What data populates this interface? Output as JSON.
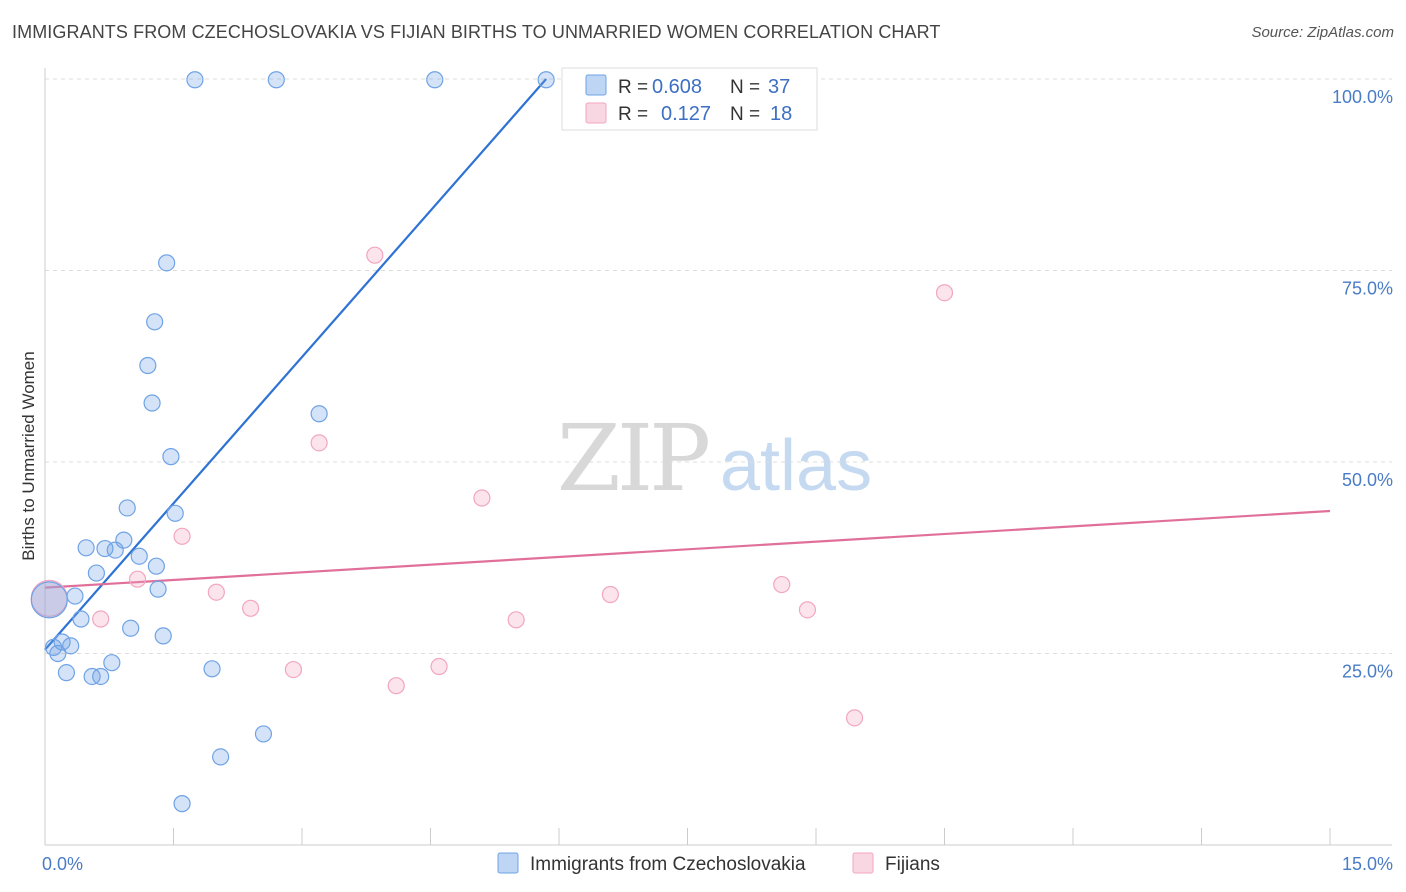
{
  "title": "IMMIGRANTS FROM CZECHOSLOVAKIA VS FIJIAN BIRTHS TO UNMARRIED WOMEN CORRELATION CHART",
  "source": "Source: ZipAtlas.com",
  "watermark": {
    "zip": "ZIP",
    "atlas": "atlas"
  },
  "chart_data": {
    "type": "scatter",
    "title": "IMMIGRANTS FROM CZECHOSLOVAKIA VS FIJIAN BIRTHS TO UNMARRIED WOMEN CORRELATION CHART",
    "xlabel": "",
    "ylabel": "Births to Unmarried Women",
    "xlim": [
      0,
      15
    ],
    "ylim": [
      0,
      100
    ],
    "x_tick_labels": [
      {
        "value": 0,
        "label": "0.0%"
      },
      {
        "value": 15,
        "label": "15.0%"
      }
    ],
    "y_tick_labels": [
      {
        "value": 100,
        "label": "100.0%"
      },
      {
        "value": 75,
        "label": "75.0%"
      },
      {
        "value": 50,
        "label": "50.0%"
      },
      {
        "value": 25,
        "label": "25.0%"
      }
    ],
    "legend_placement": "top-center",
    "series": [
      {
        "name": "Immigrants from Czechoslovakia",
        "color": "#6fa3e6",
        "line_color": "#2e73d4",
        "R": "0.608",
        "N": "37",
        "trend": {
          "x": [
            0.0,
            5.85
          ],
          "y": [
            25.5,
            100.0
          ]
        },
        "points": [
          {
            "x": 0.05,
            "y": 32,
            "big": true
          },
          {
            "x": 0.1,
            "y": 25.8
          },
          {
            "x": 0.15,
            "y": 25.0
          },
          {
            "x": 0.2,
            "y": 26.5
          },
          {
            "x": 0.25,
            "y": 22.5
          },
          {
            "x": 0.3,
            "y": 26.0
          },
          {
            "x": 0.35,
            "y": 32.5
          },
          {
            "x": 0.42,
            "y": 29.5
          },
          {
            "x": 0.48,
            "y": 38.8
          },
          {
            "x": 0.55,
            "y": 22.0
          },
          {
            "x": 0.6,
            "y": 35.5
          },
          {
            "x": 0.65,
            "y": 22.0
          },
          {
            "x": 0.7,
            "y": 38.7
          },
          {
            "x": 0.78,
            "y": 23.8
          },
          {
            "x": 0.82,
            "y": 38.5
          },
          {
            "x": 0.92,
            "y": 39.8
          },
          {
            "x": 0.96,
            "y": 44.0
          },
          {
            "x": 1.0,
            "y": 28.3
          },
          {
            "x": 1.1,
            "y": 37.7
          },
          {
            "x": 1.2,
            "y": 62.6
          },
          {
            "x": 1.25,
            "y": 57.7
          },
          {
            "x": 1.28,
            "y": 68.3
          },
          {
            "x": 1.3,
            "y": 36.4
          },
          {
            "x": 1.32,
            "y": 33.4
          },
          {
            "x": 1.38,
            "y": 27.3
          },
          {
            "x": 1.42,
            "y": 76.0
          },
          {
            "x": 1.47,
            "y": 50.7
          },
          {
            "x": 1.52,
            "y": 43.3
          },
          {
            "x": 1.6,
            "y": 5.4
          },
          {
            "x": 1.75,
            "y": 99.9
          },
          {
            "x": 1.95,
            "y": 23.0
          },
          {
            "x": 2.05,
            "y": 11.5
          },
          {
            "x": 2.55,
            "y": 14.5
          },
          {
            "x": 2.7,
            "y": 99.9
          },
          {
            "x": 3.2,
            "y": 56.3
          },
          {
            "x": 4.55,
            "y": 99.9
          },
          {
            "x": 5.85,
            "y": 99.9
          }
        ]
      },
      {
        "name": "Fijians",
        "color": "#f2a6bf",
        "line_color": "#e0709a",
        "R": "0.127",
        "N": "18",
        "trend": {
          "x": [
            0.0,
            15.0
          ],
          "y": [
            33.6,
            43.6
          ]
        },
        "points": [
          {
            "x": 0.05,
            "y": 32.2,
            "big": true
          },
          {
            "x": 0.65,
            "y": 29.5
          },
          {
            "x": 1.08,
            "y": 34.7
          },
          {
            "x": 1.6,
            "y": 40.3
          },
          {
            "x": 2.0,
            "y": 33.0
          },
          {
            "x": 2.4,
            "y": 30.9
          },
          {
            "x": 2.9,
            "y": 22.9
          },
          {
            "x": 3.2,
            "y": 52.5
          },
          {
            "x": 3.85,
            "y": 77.0
          },
          {
            "x": 4.1,
            "y": 20.8
          },
          {
            "x": 4.6,
            "y": 23.3
          },
          {
            "x": 5.1,
            "y": 45.3
          },
          {
            "x": 5.5,
            "y": 29.4
          },
          {
            "x": 6.6,
            "y": 32.7
          },
          {
            "x": 8.6,
            "y": 34.0
          },
          {
            "x": 8.9,
            "y": 30.7
          },
          {
            "x": 9.45,
            "y": 16.6
          },
          {
            "x": 10.5,
            "y": 72.1
          }
        ]
      }
    ]
  },
  "legend": {
    "r_label": "R =",
    "n_label": "N ="
  }
}
